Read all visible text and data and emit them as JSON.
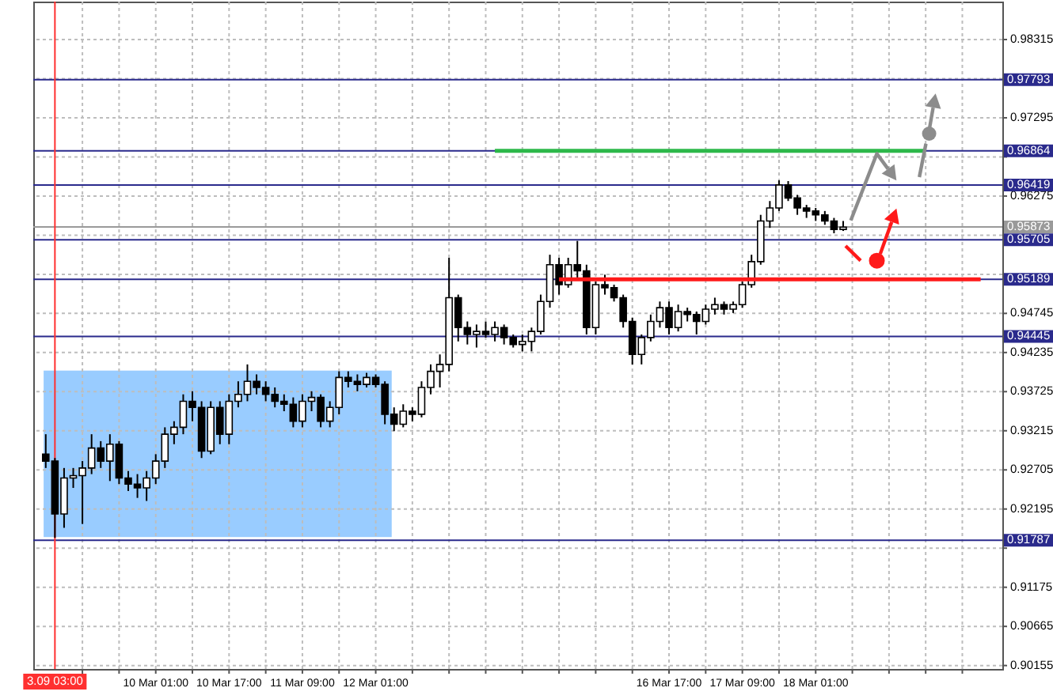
{
  "chart_data": {
    "type": "candlestick",
    "categories": [
      null,
      "3.09 03:00",
      null,
      null,
      null,
      null,
      null,
      null,
      null,
      null,
      null,
      null,
      "10 Mar 01:00",
      null,
      null,
      null,
      null,
      null,
      null,
      null,
      "10 Mar 17:00",
      null,
      null,
      null,
      null,
      null,
      null,
      null,
      "11 Mar 09:00",
      null,
      null,
      null,
      null,
      null,
      null,
      null,
      "12 Mar 01:00",
      null,
      null,
      null,
      null,
      null,
      null,
      null,
      null,
      null,
      null,
      null,
      null,
      null,
      null,
      null,
      null,
      null,
      null,
      null,
      null,
      null,
      null,
      null,
      null,
      null,
      null,
      null,
      null,
      null,
      null,
      null,
      "16 Mar 17:00",
      null,
      null,
      null,
      null,
      null,
      null,
      null,
      "17 Mar 09:00",
      null,
      null,
      null,
      null,
      null,
      null,
      null,
      "18 Mar 01:00",
      null,
      null,
      null,
      null,
      null,
      null,
      null,
      null,
      null,
      null,
      null,
      null,
      null,
      null,
      null,
      null,
      null,
      null,
      null
    ],
    "ylim": [
      0.9011,
      0.9881
    ],
    "yticks": [
      0.98315,
      {
        "value": 0.97805,
        "label": null
      },
      0.97295,
      {
        "value": 0.96785,
        "label": null
      },
      0.96275,
      {
        "value": 0.95765,
        "label": null
      },
      {
        "value": 0.95255,
        "label": null
      },
      0.94745,
      0.94235,
      0.93725,
      0.93215,
      0.92705,
      0.92195,
      {
        "value": 0.91685,
        "label": null
      },
      0.91175,
      0.90665,
      0.90155
    ],
    "grid": true,
    "series": [
      {
        "color": "#000000",
        "ohlc": [
          [
            0.9291,
            0.9317,
            0.9273,
            0.9282
          ],
          [
            0.9282,
            0.9286,
            0.9182,
            0.9213
          ],
          [
            0.9213,
            0.9273,
            0.9195,
            0.926
          ],
          [
            0.926,
            0.9273,
            0.9247,
            0.9263
          ],
          [
            0.9263,
            0.9282,
            0.92,
            0.9273
          ],
          [
            0.9273,
            0.9317,
            0.9265,
            0.9299
          ],
          [
            0.9299,
            0.9308,
            0.9273,
            0.9282
          ],
          [
            0.9282,
            0.9317,
            0.9256,
            0.9304
          ],
          [
            0.9304,
            0.9308,
            0.9252,
            0.926
          ],
          [
            0.926,
            0.9269,
            0.9243,
            0.9252
          ],
          [
            0.9252,
            0.9265,
            0.9234,
            0.9247
          ],
          [
            0.9247,
            0.9269,
            0.923,
            0.926
          ],
          [
            0.926,
            0.9291,
            0.9252,
            0.9282
          ],
          [
            0.9282,
            0.9326,
            0.9273,
            0.9317
          ],
          [
            0.9317,
            0.9334,
            0.9304,
            0.9326
          ],
          [
            0.9326,
            0.9369,
            0.9317,
            0.936
          ],
          [
            0.936,
            0.9373,
            0.9334,
            0.9352
          ],
          [
            0.9352,
            0.936,
            0.9286,
            0.9295
          ],
          [
            0.9295,
            0.936,
            0.9291,
            0.9352
          ],
          [
            0.9352,
            0.936,
            0.9304,
            0.9317
          ],
          [
            0.9317,
            0.9369,
            0.9304,
            0.936
          ],
          [
            0.936,
            0.9386,
            0.9352,
            0.9369
          ],
          [
            0.9369,
            0.9408,
            0.936,
            0.9386
          ],
          [
            0.9386,
            0.9395,
            0.9369,
            0.9378
          ],
          [
            0.9378,
            0.9386,
            0.936,
            0.9369
          ],
          [
            0.9369,
            0.9378,
            0.9352,
            0.936
          ],
          [
            0.936,
            0.9369,
            0.9347,
            0.9356
          ],
          [
            0.9356,
            0.9365,
            0.9326,
            0.9334
          ],
          [
            0.9334,
            0.9369,
            0.9326,
            0.936
          ],
          [
            0.936,
            0.9373,
            0.9347,
            0.9365
          ],
          [
            0.9365,
            0.9369,
            0.9326,
            0.9334
          ],
          [
            0.9334,
            0.936,
            0.9326,
            0.9352
          ],
          [
            0.9352,
            0.9399,
            0.9343,
            0.9391
          ],
          [
            0.9391,
            0.9399,
            0.9378,
            0.9386
          ],
          [
            0.9386,
            0.9395,
            0.9373,
            0.9382
          ],
          [
            0.9382,
            0.9397,
            0.9378,
            0.9391
          ],
          [
            0.9391,
            0.9395,
            0.9378,
            0.9382
          ],
          [
            0.9382,
            0.9386,
            0.933,
            0.9343
          ],
          [
            0.9343,
            0.9352,
            0.9321,
            0.933
          ],
          [
            0.933,
            0.9356,
            0.9326,
            0.9347
          ],
          [
            0.9347,
            0.9352,
            0.9334,
            0.9343
          ],
          [
            0.9343,
            0.9386,
            0.9339,
            0.9378
          ],
          [
            0.9378,
            0.9408,
            0.9369,
            0.9399
          ],
          [
            0.9399,
            0.9421,
            0.9378,
            0.9408
          ],
          [
            0.9408,
            0.9547,
            0.9399,
            0.9495
          ],
          [
            0.9495,
            0.9499,
            0.9438,
            0.9456
          ],
          [
            0.9456,
            0.9464,
            0.9434,
            0.9447
          ],
          [
            0.9447,
            0.946,
            0.943,
            0.9451
          ],
          [
            0.9451,
            0.9464,
            0.9443,
            0.9447
          ],
          [
            0.9447,
            0.9464,
            0.9438,
            0.9456
          ],
          [
            0.9456,
            0.946,
            0.9434,
            0.9443
          ],
          [
            0.9443,
            0.9447,
            0.943,
            0.9434
          ],
          [
            0.9434,
            0.9447,
            0.9425,
            0.9438
          ],
          [
            0.9438,
            0.9456,
            0.9425,
            0.9451
          ],
          [
            0.9451,
            0.9499,
            0.9447,
            0.949
          ],
          [
            0.949,
            0.9551,
            0.9482,
            0.9538
          ],
          [
            0.9538,
            0.9547,
            0.9499,
            0.9512
          ],
          [
            0.9512,
            0.9547,
            0.9508,
            0.9538
          ],
          [
            0.9538,
            0.9569,
            0.9521,
            0.953
          ],
          [
            0.953,
            0.9538,
            0.9447,
            0.9456
          ],
          [
            0.9456,
            0.9516,
            0.9447,
            0.9512
          ],
          [
            0.9512,
            0.9525,
            0.9499,
            0.9508
          ],
          [
            0.9508,
            0.9512,
            0.949,
            0.9495
          ],
          [
            0.9495,
            0.9499,
            0.9456,
            0.9464
          ],
          [
            0.9464,
            0.9469,
            0.9408,
            0.9421
          ],
          [
            0.9421,
            0.9447,
            0.9408,
            0.9443
          ],
          [
            0.9443,
            0.9473,
            0.9438,
            0.9464
          ],
          [
            0.9464,
            0.949,
            0.9456,
            0.9482
          ],
          [
            0.9482,
            0.949,
            0.9447,
            0.9456
          ],
          [
            0.9456,
            0.9486,
            0.9451,
            0.9477
          ],
          [
            0.9477,
            0.9482,
            0.9464,
            0.9473
          ],
          [
            0.9473,
            0.9477,
            0.9447,
            0.9464
          ],
          [
            0.9464,
            0.9486,
            0.946,
            0.948
          ],
          [
            0.948,
            0.9495,
            0.9473,
            0.9486
          ],
          [
            0.9486,
            0.949,
            0.9473,
            0.948
          ],
          [
            0.948,
            0.949,
            0.9475,
            0.9486
          ],
          [
            0.9486,
            0.9516,
            0.9482,
            0.9512
          ],
          [
            0.9512,
            0.9551,
            0.9508,
            0.9542
          ],
          [
            0.9542,
            0.9603,
            0.9538,
            0.9595
          ],
          [
            0.9595,
            0.9621,
            0.9586,
            0.9612
          ],
          [
            0.9612,
            0.9648,
            0.9608,
            0.9642
          ],
          [
            0.9642,
            0.9647,
            0.9621,
            0.9625
          ],
          [
            0.9625,
            0.9629,
            0.9603,
            0.9612
          ],
          [
            0.9612,
            0.9616,
            0.9599,
            0.9608
          ],
          [
            0.9608,
            0.9612,
            0.9595,
            0.9603
          ],
          [
            0.9603,
            0.9608,
            0.959,
            0.9595
          ],
          [
            0.9595,
            0.9599,
            0.9579,
            0.9584
          ],
          [
            0.9584,
            0.9595,
            0.9582,
            0.9587
          ],
          null,
          null,
          null,
          null,
          null,
          null,
          null,
          null,
          null,
          null,
          null,
          null,
          null,
          null,
          null,
          null
        ]
      },
      {
        "type": "line",
        "color": "#2db84a",
        "values": [
          null,
          null,
          null,
          null,
          null,
          null,
          null,
          null,
          null,
          null,
          null,
          null,
          null,
          null,
          null,
          null,
          null,
          null,
          null,
          null,
          null,
          null,
          null,
          null,
          null,
          null,
          null,
          null,
          null,
          null,
          null,
          null,
          null,
          null,
          null,
          null,
          null,
          null,
          null,
          null,
          null,
          null,
          null,
          null,
          null,
          null,
          null,
          null,
          null,
          0.96864,
          0.96864,
          0.96864,
          0.96864,
          0.96864,
          0.96864,
          0.96864,
          0.96864,
          0.96864,
          0.96864,
          0.96864,
          0.96864,
          0.96864,
          0.96864,
          0.96864,
          0.96864,
          0.96864,
          0.96864,
          0.96864,
          0.96864,
          0.96864,
          0.96864,
          0.96864,
          0.96864,
          0.96864,
          0.96864,
          0.96864,
          0.96864,
          0.96864,
          0.96864,
          0.96864,
          0.96864,
          0.96864,
          0.96864,
          0.96864,
          0.96864,
          0.96864,
          0.96864,
          0.96864,
          0.96864,
          0.96864,
          0.96864,
          0.96864,
          0.96864,
          0.96864,
          0.96864,
          0.96864,
          0.96864,
          null,
          null,
          null,
          null,
          null,
          null,
          null
        ]
      },
      {
        "type": "line",
        "color": "#ff1a1a",
        "values": [
          null,
          null,
          null,
          null,
          null,
          null,
          null,
          null,
          null,
          null,
          null,
          null,
          null,
          null,
          null,
          null,
          null,
          null,
          null,
          null,
          null,
          null,
          null,
          null,
          null,
          null,
          null,
          null,
          null,
          null,
          null,
          null,
          null,
          null,
          null,
          null,
          null,
          null,
          null,
          null,
          null,
          null,
          null,
          null,
          null,
          null,
          null,
          null,
          null,
          null,
          null,
          null,
          null,
          null,
          null,
          null,
          0.95189,
          0.95189,
          0.95189,
          0.95189,
          0.95189,
          0.95189,
          0.95189,
          0.95189,
          0.95189,
          0.95189,
          0.95189,
          0.95189,
          0.95189,
          0.95189,
          0.95189,
          0.95189,
          0.95189,
          0.95189,
          0.95189,
          0.95189,
          0.95189,
          0.95189,
          0.95189,
          0.95189,
          0.95189,
          0.95189,
          0.95189,
          0.95189,
          0.95189,
          0.95189,
          0.95189,
          0.95189,
          0.95189,
          0.95189,
          0.95189,
          0.95189,
          0.95189,
          0.95189,
          0.95189,
          0.95189,
          0.95189,
          0.95189,
          0.95189,
          0.95189,
          0.95189,
          0.95189,
          0.95189,
          null
        ]
      }
    ],
    "ref_lines": [
      {
        "axis": "y",
        "value": 0.97793,
        "label": "0.97793",
        "color": "#2a2a8c"
      },
      {
        "axis": "y",
        "value": 0.96864,
        "label": "0.96864",
        "color": "#2a2a8c"
      },
      {
        "axis": "y",
        "value": 0.96419,
        "label": "0.96419",
        "color": "#2a2a8c"
      },
      {
        "axis": "y",
        "value": 0.95873,
        "label": "0.95873",
        "color": "#9a9a9a"
      },
      {
        "axis": "y",
        "value": 0.95705,
        "label": "0.95705",
        "color": "#2a2a8c"
      },
      {
        "axis": "y",
        "value": 0.95189,
        "label": "0.95189",
        "color": "#2a2a8c"
      },
      {
        "axis": "y",
        "value": 0.94445,
        "label": "0.94445",
        "color": "#2a2a8c"
      },
      {
        "axis": "y",
        "value": 0.91787,
        "label": "0.91787",
        "color": "#2a2a8c"
      },
      {
        "axis": "x",
        "value": "3.09 03:00",
        "color": "#ff3030"
      }
    ]
  }
}
